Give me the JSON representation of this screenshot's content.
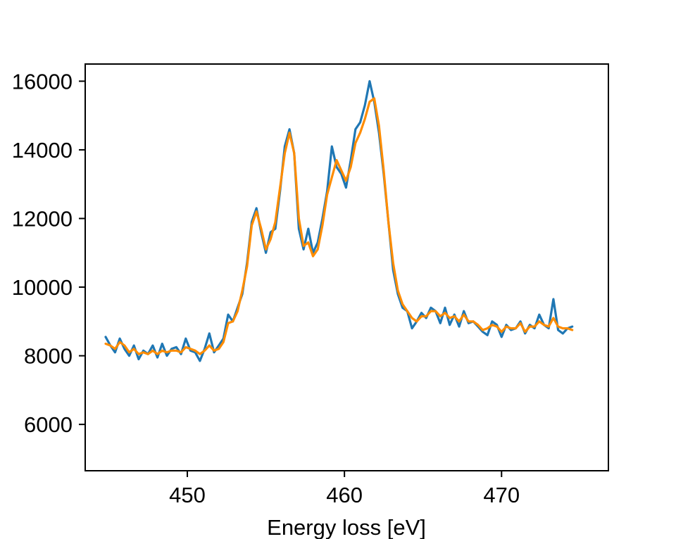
{
  "chart_data": {
    "type": "line",
    "title": "",
    "xlabel": "Energy loss [eV]",
    "ylabel": "",
    "xlim": [
      443.5,
      476.8
    ],
    "ylim": [
      4650,
      16500
    ],
    "xticks": [
      450,
      460,
      470
    ],
    "yticks": [
      6000,
      8000,
      10000,
      12000,
      14000,
      16000
    ],
    "xtick_labels": [
      "450",
      "460",
      "470"
    ],
    "ytick_labels": [
      "6000",
      "8000",
      "10000",
      "12000",
      "14000",
      "16000"
    ],
    "grid": false,
    "legend": "none",
    "series": [
      {
        "color": "#1f77b4",
        "x": [
          444.8,
          445.1,
          445.4,
          445.7,
          446.0,
          446.3,
          446.6,
          446.9,
          447.2,
          447.5,
          447.8,
          448.1,
          448.4,
          448.7,
          449.0,
          449.3,
          449.6,
          449.9,
          450.2,
          450.5,
          450.8,
          451.1,
          451.4,
          451.7,
          452.0,
          452.3,
          452.6,
          452.9,
          453.2,
          453.5,
          453.8,
          454.1,
          454.4,
          454.7,
          455.0,
          455.3,
          455.6,
          455.9,
          456.2,
          456.5,
          456.8,
          457.1,
          457.4,
          457.7,
          458.0,
          458.3,
          458.6,
          458.9,
          459.2,
          459.5,
          459.8,
          460.1,
          460.4,
          460.7,
          461.0,
          461.3,
          461.6,
          461.9,
          462.2,
          462.5,
          462.8,
          463.1,
          463.4,
          463.7,
          464.0,
          464.3,
          464.6,
          464.9,
          465.2,
          465.5,
          465.8,
          466.1,
          466.4,
          466.7,
          467.0,
          467.3,
          467.6,
          467.9,
          468.2,
          468.5,
          468.8,
          469.1,
          469.4,
          469.7,
          470.0,
          470.3,
          470.6,
          470.9,
          471.2,
          471.5,
          471.8,
          472.1,
          472.4,
          472.7,
          473.0,
          473.3,
          473.6,
          473.9,
          474.2,
          474.5
        ],
        "values": [
          8550,
          8300,
          8100,
          8500,
          8200,
          8000,
          8300,
          7900,
          8150,
          8050,
          8300,
          7950,
          8350,
          8000,
          8200,
          8250,
          8050,
          8500,
          8150,
          8100,
          7850,
          8200,
          8650,
          8100,
          8300,
          8500,
          9200,
          9000,
          9400,
          9800,
          10700,
          11900,
          12300,
          11600,
          11000,
          11600,
          11700,
          12800,
          14100,
          14600,
          13900,
          11700,
          11100,
          11700,
          11000,
          11300,
          12000,
          12800,
          14100,
          13500,
          13300,
          12900,
          13700,
          14600,
          14800,
          15300,
          16000,
          15400,
          14500,
          13300,
          11900,
          10500,
          9800,
          9400,
          9300,
          8800,
          9000,
          9250,
          9100,
          9400,
          9300,
          8950,
          9400,
          8900,
          9200,
          8850,
          9300,
          8950,
          9000,
          8850,
          8700,
          8600,
          9000,
          8900,
          8550,
          8900,
          8750,
          8800,
          9000,
          8650,
          8900,
          8800,
          9200,
          8900,
          8800,
          9650,
          8750,
          8650,
          8800,
          8850
        ]
      },
      {
        "color": "#ff8c00",
        "x": [
          444.8,
          445.1,
          445.4,
          445.7,
          446.0,
          446.3,
          446.6,
          446.9,
          447.2,
          447.5,
          447.8,
          448.1,
          448.4,
          448.7,
          449.0,
          449.3,
          449.6,
          449.9,
          450.2,
          450.5,
          450.8,
          451.1,
          451.4,
          451.7,
          452.0,
          452.3,
          452.6,
          452.9,
          453.2,
          453.5,
          453.8,
          454.1,
          454.4,
          454.7,
          455.0,
          455.3,
          455.6,
          455.9,
          456.2,
          456.5,
          456.8,
          457.1,
          457.4,
          457.7,
          458.0,
          458.3,
          458.6,
          458.9,
          459.2,
          459.5,
          459.8,
          460.1,
          460.4,
          460.7,
          461.0,
          461.3,
          461.6,
          461.9,
          462.2,
          462.5,
          462.8,
          463.1,
          463.4,
          463.7,
          464.0,
          464.3,
          464.6,
          464.9,
          465.2,
          465.5,
          465.8,
          466.1,
          466.4,
          466.7,
          467.0,
          467.3,
          467.6,
          467.9,
          468.2,
          468.5,
          468.8,
          469.1,
          469.4,
          469.7,
          470.0,
          470.3,
          470.6,
          470.9,
          471.2,
          471.5,
          471.8,
          472.1,
          472.4,
          472.7,
          473.0,
          473.3,
          473.6,
          473.9,
          474.2,
          474.5
        ],
        "values": [
          8350,
          8300,
          8200,
          8400,
          8300,
          8100,
          8200,
          8050,
          8100,
          8050,
          8150,
          8050,
          8150,
          8100,
          8150,
          8150,
          8100,
          8250,
          8200,
          8150,
          8050,
          8150,
          8300,
          8150,
          8200,
          8400,
          8950,
          9000,
          9300,
          9900,
          10600,
          11800,
          12200,
          11700,
          11100,
          11400,
          11900,
          12900,
          13900,
          14500,
          13900,
          12000,
          11200,
          11300,
          10900,
          11100,
          11800,
          12700,
          13200,
          13700,
          13400,
          13100,
          13500,
          14200,
          14500,
          14900,
          15400,
          15500,
          14700,
          13400,
          11900,
          10700,
          9900,
          9500,
          9300,
          9100,
          9000,
          9150,
          9150,
          9300,
          9300,
          9150,
          9250,
          9100,
          9150,
          9000,
          9200,
          9000,
          9000,
          8900,
          8750,
          8800,
          8900,
          8850,
          8700,
          8850,
          8800,
          8800,
          8950,
          8700,
          8850,
          8850,
          9000,
          8900,
          8850,
          9100,
          8850,
          8800,
          8800,
          8750
        ]
      }
    ]
  }
}
